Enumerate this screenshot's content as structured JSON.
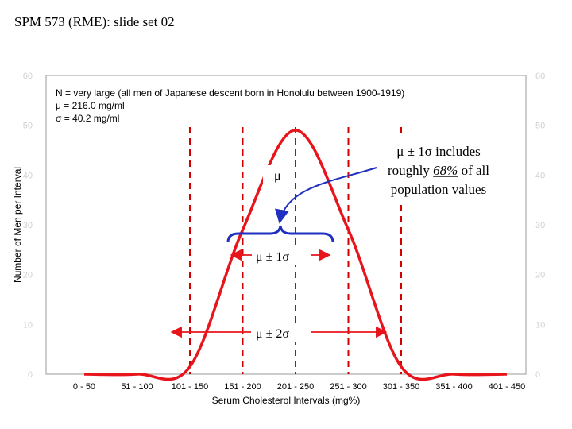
{
  "slide": {
    "title": "SPM 573 (RME): slide set 02"
  },
  "colors": {
    "curve": "#e8141c",
    "dashed": "#d40000",
    "brace": "#1f2fbf",
    "frame": "#bbbbbb",
    "tick_faint": "#d0d0d0"
  },
  "chart_data": {
    "type": "line",
    "xlabel": "Serum Cholesterol Intervals (mg%)",
    "ylabel": "Number of Men per Interval",
    "categories": [
      "0 - 50",
      "51 - 100",
      "101 - 150",
      "151 - 200",
      "201 - 250",
      "251 - 300",
      "301 - 350",
      "351 - 400",
      "401 - 450"
    ],
    "ylim": [
      0,
      60
    ],
    "yticks": [
      "0",
      "10",
      "20",
      "30",
      "40",
      "50",
      "60"
    ],
    "series": [
      {
        "values": [
          0,
          0,
          1.5,
          29,
          49,
          29,
          1.5,
          0,
          0
        ]
      }
    ],
    "info_lines": [
      "N = very large (all men of Japanese descent born in Honolulu between 1900-1919)",
      "μ = 216.0 mg/ml",
      "σ = 40.2 mg/ml"
    ],
    "dashed_lines_x": [
      125,
      175,
      225,
      275,
      325
    ]
  },
  "annotations": {
    "mu": "μ",
    "mu1": "μ ± 1σ",
    "mu2": "μ ± 2σ",
    "callout_line1": "μ ± 1σ includes",
    "callout_line2_pre": "roughly ",
    "callout_line2_pct": "68%",
    "callout_line2_post": " of all",
    "callout_line3": "population values"
  }
}
